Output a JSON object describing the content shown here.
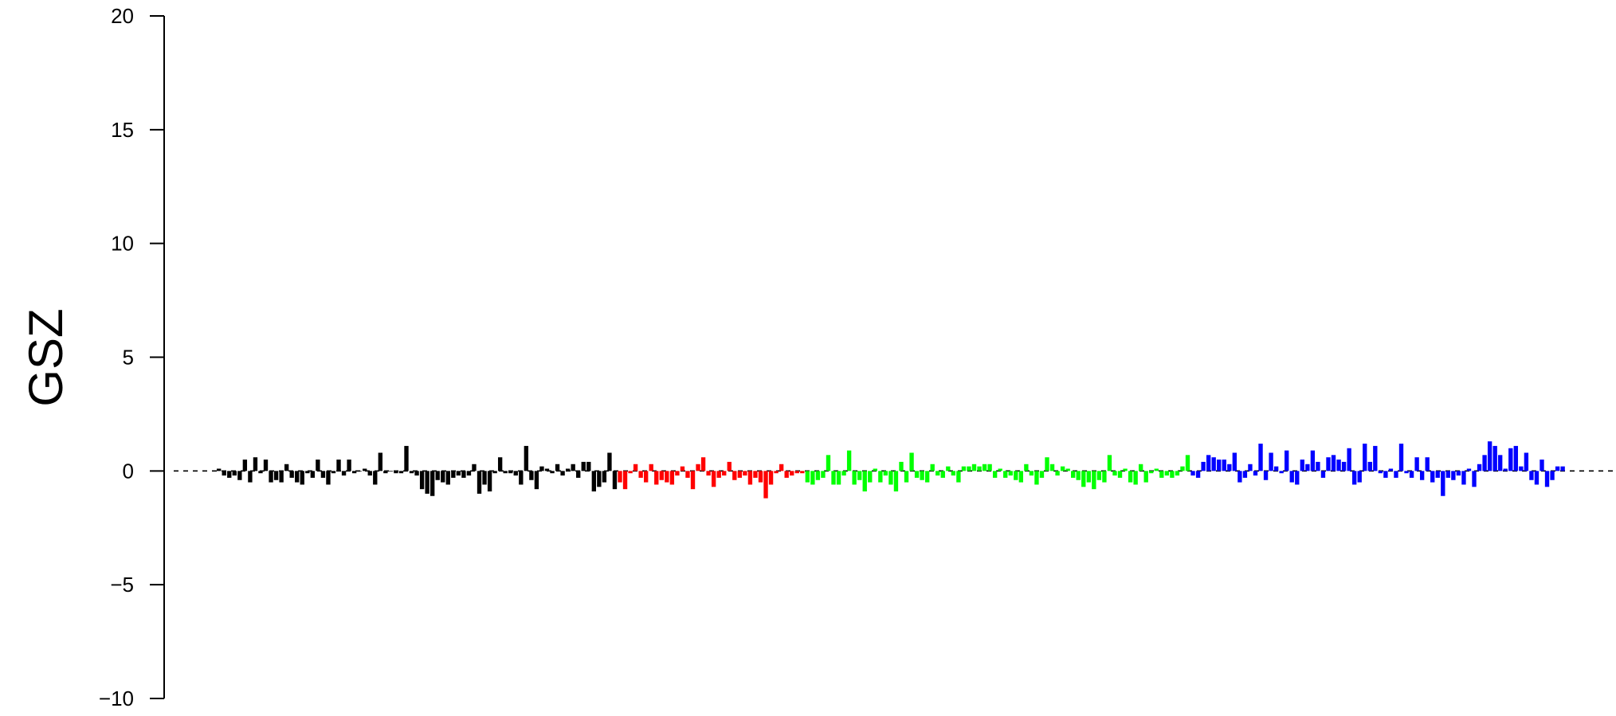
{
  "chart_data": {
    "type": "bar",
    "ylabel": "GSZ",
    "ylim": [
      -10,
      20
    ],
    "yticks": [
      -10,
      -5,
      0,
      5,
      10,
      15,
      20
    ],
    "ytick_labels": [
      "−10",
      "−5",
      "0",
      "5",
      "10",
      "15",
      "20"
    ],
    "reference_line": {
      "y": 0,
      "style": "dashed"
    },
    "grid": false,
    "series": [
      {
        "color": "#000000",
        "values": [
          0.1,
          -0.2,
          -0.3,
          -0.2,
          -0.4,
          0.5,
          -0.5,
          0.6,
          -0.1,
          0.5,
          -0.5,
          -0.4,
          -0.5,
          0.3,
          -0.3,
          -0.5,
          -0.6,
          -0.1,
          -0.3,
          0.5,
          -0.3,
          -0.6,
          -0.1,
          0.5,
          -0.2,
          0.5,
          -0.1,
          0.0,
          0.1,
          -0.2,
          -0.6,
          0.8,
          -0.1,
          0.0,
          -0.1,
          -0.1,
          1.1,
          -0.1,
          -0.2,
          -0.8,
          -1.0,
          -1.1,
          -0.4,
          -0.5,
          -0.6,
          -0.3,
          -0.2,
          -0.3,
          -0.2,
          0.3,
          -1.0,
          -0.6,
          -0.9,
          -0.1,
          0.6,
          -0.1,
          -0.1,
          -0.2,
          -0.6,
          1.1,
          -0.4,
          -0.8,
          0.2,
          0.1,
          -0.1,
          0.3,
          -0.2,
          0.1,
          0.3,
          -0.3,
          0.4,
          0.4,
          -0.9,
          -0.7,
          -0.5,
          0.8,
          -0.8
        ]
      },
      {
        "color": "#ff0000",
        "values": [
          -0.5,
          -0.8,
          -0.1,
          0.3,
          -0.3,
          -0.5,
          0.3,
          -0.6,
          -0.4,
          -0.5,
          -0.6,
          -0.2,
          0.2,
          -0.3,
          -0.8,
          0.3,
          0.6,
          -0.2,
          -0.7,
          -0.3,
          -0.2,
          0.4,
          -0.4,
          -0.3,
          -0.2,
          -0.6,
          -0.3,
          -0.5,
          -1.2,
          -0.6,
          -0.1,
          0.3,
          -0.3,
          -0.2,
          -0.1,
          -0.1
        ]
      },
      {
        "color": "#00ff00",
        "values": [
          -0.5,
          -0.6,
          -0.4,
          -0.3,
          0.7,
          -0.6,
          -0.6,
          -0.2,
          0.9,
          -0.6,
          -0.4,
          -0.9,
          -0.5,
          0.1,
          -0.5,
          -0.2,
          -0.6,
          -0.9,
          0.4,
          -0.5,
          0.8,
          -0.3,
          -0.4,
          -0.5,
          0.3,
          -0.2,
          -0.3,
          0.2,
          -0.2,
          -0.5,
          0.2,
          0.2,
          0.3,
          0.2,
          0.3,
          0.3,
          -0.3,
          0.1,
          -0.3,
          -0.2,
          -0.4,
          -0.5,
          0.3,
          -0.2,
          -0.6,
          -0.3,
          0.6,
          0.3,
          -0.2,
          0.2,
          0.1,
          -0.3,
          -0.4,
          -0.7,
          -0.5,
          -0.8,
          -0.4,
          -0.5,
          0.7,
          -0.2,
          -0.3,
          0.1,
          -0.5,
          -0.6,
          0.3,
          -0.5,
          -0.1,
          0.1,
          -0.3,
          -0.2,
          -0.3,
          -0.2,
          0.2,
          0.7
        ]
      },
      {
        "color": "#0000ff",
        "values": [
          -0.2,
          -0.3,
          0.4,
          0.7,
          0.6,
          0.5,
          0.5,
          0.3,
          0.8,
          -0.5,
          -0.3,
          0.3,
          -0.2,
          1.2,
          -0.4,
          0.8,
          0.2,
          -0.1,
          0.9,
          -0.5,
          -0.6,
          0.5,
          0.3,
          0.9,
          0.4,
          -0.3,
          0.6,
          0.7,
          0.5,
          0.4,
          1.0,
          -0.6,
          -0.5,
          1.2,
          0.4,
          1.1,
          -0.1,
          -0.3,
          0.1,
          -0.3,
          1.2,
          -0.1,
          -0.3,
          0.6,
          -0.4,
          0.6,
          -0.5,
          -0.3,
          -1.1,
          -0.3,
          -0.4,
          -0.2,
          -0.6,
          0.1,
          -0.7,
          0.3,
          0.7,
          1.3,
          1.1,
          0.7,
          0.1,
          1.0,
          1.1,
          0.2,
          0.8,
          -0.4,
          -0.6,
          0.5,
          -0.7,
          -0.4,
          0.2,
          0.2
        ]
      }
    ]
  }
}
